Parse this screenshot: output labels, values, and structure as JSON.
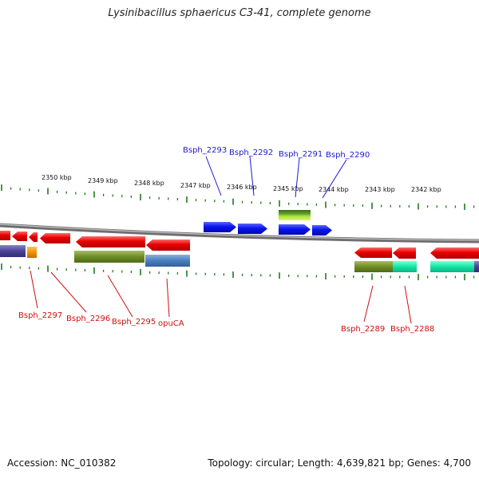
{
  "title": "Lysinibacillus sphaericus C3-41, complete genome",
  "footer": {
    "accession": "Accession: NC_010382",
    "summary": "Topology: circular; Length: 4,639,821 bp; Genes: 4,700"
  },
  "scale_labels": [
    "2350 kbp",
    "2349 kbp",
    "2348 kbp",
    "2347 kbp",
    "2346 kbp",
    "2345 kbp",
    "2344 kbp",
    "2343 kbp",
    "2342 kbp"
  ],
  "genes_top": [
    "Bsph_2293",
    "Bsph_2292",
    "Bsph_2291",
    "Bsph_2290"
  ],
  "genes_bottom": [
    "Bsph_2297",
    "Bsph_2296",
    "Bsph_2295",
    "opuCA",
    "Bsph_2289",
    "Bsph_2288"
  ],
  "colors": {
    "forward_strand": "#0a12e6",
    "reverse_strand": "#e40a0a",
    "backbone": "#8a8a8a",
    "ticks": "#1f7a1f",
    "label_top": "#1a1acc",
    "label_bottom": "#cc1010"
  }
}
